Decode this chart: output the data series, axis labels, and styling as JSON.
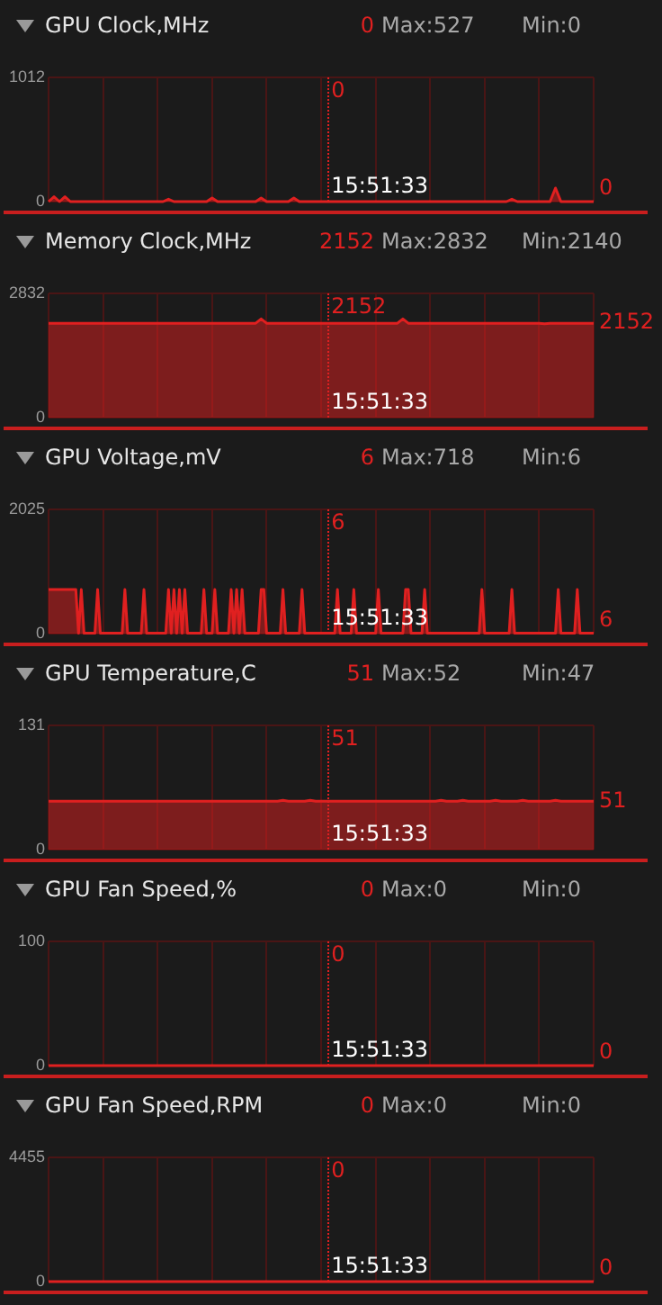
{
  "chart_data": [
    {
      "type": "area",
      "title": "GPU Clock,MHz",
      "color": "#e02020",
      "grid": true,
      "tick_labels": "y",
      "ylim": [
        0,
        1012
      ],
      "yticks": [
        0,
        1012
      ],
      "categories": [
        null,
        null,
        null,
        null,
        null,
        null,
        null,
        null,
        null,
        null,
        null,
        null,
        null,
        null,
        null,
        null,
        null,
        null,
        null,
        null,
        null,
        null,
        null,
        null,
        null,
        null,
        null,
        null,
        null,
        null,
        null,
        null,
        null,
        null,
        null,
        null,
        null,
        null,
        null,
        null,
        null,
        null,
        null,
        null,
        null,
        null,
        null,
        null,
        null,
        null,
        null,
        null,
        null,
        null,
        null,
        null,
        null,
        null,
        null,
        null,
        null,
        null,
        null,
        null,
        null,
        null,
        null,
        null,
        null,
        null,
        null,
        null,
        null,
        null,
        null,
        null,
        null,
        null,
        null,
        null,
        null,
        null,
        null,
        null,
        null,
        null,
        null,
        null,
        null,
        null,
        null,
        null,
        null,
        null,
        null,
        null,
        null,
        null,
        null,
        null,
        null
      ],
      "values": [
        0,
        40,
        0,
        40,
        0,
        0,
        0,
        0,
        0,
        0,
        0,
        0,
        0,
        0,
        0,
        0,
        0,
        0,
        0,
        0,
        0,
        0,
        20,
        0,
        0,
        0,
        0,
        0,
        0,
        0,
        30,
        0,
        0,
        0,
        0,
        0,
        0,
        0,
        0,
        30,
        0,
        0,
        0,
        0,
        0,
        30,
        0,
        0,
        0,
        0,
        0,
        0,
        0,
        0,
        0,
        0,
        0,
        0,
        0,
        0,
        0,
        0,
        0,
        0,
        0,
        0,
        0,
        0,
        0,
        0,
        0,
        0,
        0,
        0,
        0,
        0,
        0,
        0,
        0,
        0,
        0,
        0,
        0,
        0,
        0,
        20,
        0,
        0,
        0,
        0,
        0,
        0,
        0,
        110,
        0,
        0,
        0,
        0,
        0,
        0,
        0
      ],
      "annotations": [
        "0",
        "Max:527",
        "Min:0",
        "0",
        "15:51:33",
        "0"
      ]
    },
    {
      "type": "area",
      "title": "Memory Clock,MHz",
      "color": "#e02020",
      "grid": true,
      "tick_labels": "y",
      "ylim": [
        0,
        2832
      ],
      "yticks": [
        0,
        2832
      ],
      "categories": [
        null,
        null,
        null,
        null,
        null,
        null,
        null,
        null,
        null,
        null,
        null,
        null,
        null,
        null,
        null,
        null,
        null,
        null,
        null,
        null,
        null,
        null,
        null,
        null,
        null,
        null,
        null,
        null,
        null,
        null,
        null,
        null,
        null,
        null,
        null,
        null,
        null,
        null,
        null,
        null,
        null,
        null,
        null,
        null,
        null,
        null,
        null,
        null,
        null,
        null,
        null,
        null,
        null,
        null,
        null,
        null,
        null,
        null,
        null,
        null,
        null,
        null,
        null,
        null,
        null,
        null,
        null,
        null,
        null,
        null,
        null,
        null,
        null,
        null,
        null,
        null,
        null,
        null,
        null,
        null,
        null,
        null,
        null,
        null,
        null,
        null,
        null,
        null,
        null,
        null,
        null,
        null,
        null,
        null,
        null,
        null,
        null,
        null,
        null,
        null,
        null
      ],
      "values": [
        2152,
        2152,
        2152,
        2152,
        2152,
        2152,
        2152,
        2152,
        2152,
        2152,
        2152,
        2152,
        2152,
        2152,
        2152,
        2152,
        2152,
        2152,
        2152,
        2152,
        2152,
        2152,
        2152,
        2152,
        2152,
        2152,
        2152,
        2152,
        2152,
        2152,
        2152,
        2152,
        2152,
        2152,
        2152,
        2152,
        2152,
        2152,
        2152,
        2250,
        2152,
        2152,
        2152,
        2152,
        2152,
        2152,
        2152,
        2152,
        2152,
        2152,
        2152,
        2152,
        2152,
        2152,
        2152,
        2152,
        2152,
        2152,
        2152,
        2152,
        2152,
        2152,
        2152,
        2152,
        2152,
        2250,
        2152,
        2152,
        2152,
        2152,
        2152,
        2152,
        2152,
        2152,
        2152,
        2152,
        2152,
        2152,
        2152,
        2152,
        2152,
        2152,
        2152,
        2152,
        2152,
        2152,
        2152,
        2152,
        2152,
        2152,
        2152,
        2140,
        2152,
        2152,
        2152,
        2152,
        2152,
        2152,
        2152,
        2152,
        2152
      ],
      "annotations": [
        "2152",
        "Max:2832",
        "Min:2140",
        "2152",
        "15:51:33",
        "2152"
      ]
    },
    {
      "type": "area",
      "title": "GPU Voltage,mV",
      "color": "#e02020",
      "grid": true,
      "tick_labels": "y",
      "ylim": [
        0,
        2025
      ],
      "yticks": [
        0,
        2025
      ],
      "categories": [
        null,
        null,
        null,
        null,
        null,
        null,
        null,
        null,
        null,
        null,
        null,
        null,
        null,
        null,
        null,
        null,
        null,
        null,
        null,
        null,
        null,
        null,
        null,
        null,
        null,
        null,
        null,
        null,
        null,
        null,
        null,
        null,
        null,
        null,
        null,
        null,
        null,
        null,
        null,
        null,
        null,
        null,
        null,
        null,
        null,
        null,
        null,
        null,
        null,
        null,
        null,
        null,
        null,
        null,
        null,
        null,
        null,
        null,
        null,
        null,
        null,
        null,
        null,
        null,
        null,
        null,
        null,
        null,
        null,
        null,
        null,
        null,
        null,
        null,
        null,
        null,
        null,
        null,
        null,
        null,
        null,
        null,
        null,
        null,
        null,
        null,
        null,
        null,
        null,
        null,
        null,
        null,
        null,
        null,
        null,
        null,
        null,
        null,
        null,
        null,
        null,
        null,
        null,
        null,
        null,
        null,
        null,
        null,
        null,
        null,
        null,
        null,
        null,
        null,
        null,
        null,
        null,
        null,
        null,
        null,
        null,
        null,
        null,
        null,
        null,
        null,
        null,
        null,
        null,
        null,
        null,
        null,
        null,
        null,
        null,
        null,
        null,
        null,
        null,
        null,
        null,
        null,
        null,
        null,
        null,
        null,
        null,
        null,
        null,
        null,
        null,
        null,
        null,
        null,
        null,
        null,
        null,
        null,
        null,
        null,
        null,
        null,
        null,
        null,
        null,
        null,
        null,
        null,
        null,
        null,
        null,
        null,
        null,
        null,
        null,
        null,
        null,
        null,
        null,
        null,
        null,
        null,
        null,
        null,
        null,
        null,
        null,
        null,
        null,
        null,
        null,
        null,
        null,
        null,
        null,
        null,
        null,
        null,
        null,
        null,
        null
      ],
      "values": [
        718,
        718,
        718,
        718,
        718,
        718,
        718,
        718,
        718,
        718,
        718,
        6,
        718,
        6,
        6,
        6,
        6,
        6,
        718,
        6,
        6,
        6,
        6,
        6,
        6,
        6,
        6,
        6,
        718,
        6,
        6,
        6,
        6,
        6,
        6,
        718,
        6,
        6,
        6,
        6,
        6,
        6,
        6,
        6,
        718,
        6,
        718,
        6,
        718,
        6,
        718,
        6,
        6,
        6,
        6,
        6,
        6,
        718,
        6,
        6,
        6,
        718,
        6,
        6,
        6,
        6,
        6,
        718,
        6,
        718,
        6,
        718,
        6,
        6,
        6,
        6,
        6,
        6,
        718,
        718,
        6,
        6,
        6,
        6,
        6,
        6,
        718,
        6,
        6,
        6,
        6,
        6,
        6,
        718,
        6,
        6,
        6,
        6,
        6,
        6,
        6,
        6,
        6,
        6,
        6,
        6,
        718,
        6,
        6,
        6,
        6,
        6,
        718,
        6,
        6,
        6,
        6,
        6,
        6,
        6,
        6,
        718,
        6,
        6,
        6,
        6,
        6,
        6,
        6,
        6,
        6,
        718,
        718,
        6,
        6,
        6,
        6,
        6,
        718,
        6,
        6,
        6,
        6,
        6,
        6,
        6,
        6,
        6,
        6,
        6,
        6,
        6,
        6,
        6,
        6,
        6,
        6,
        6,
        6,
        718,
        6,
        6,
        6,
        6,
        6,
        6,
        6,
        6,
        6,
        6,
        718,
        6,
        6,
        6,
        6,
        6,
        6,
        6,
        6,
        6,
        6,
        6,
        6,
        6,
        6,
        6,
        6,
        718,
        6,
        6,
        6,
        6,
        6,
        6,
        718,
        6,
        6,
        6,
        6,
        6,
        6
      ],
      "annotations": [
        "6",
        "Max:718",
        "Min:6",
        "6",
        "15:51:33",
        "6"
      ]
    },
    {
      "type": "area",
      "title": "GPU Temperature,C",
      "color": "#e02020",
      "grid": true,
      "tick_labels": "y",
      "ylim": [
        0,
        131
      ],
      "yticks": [
        0,
        131
      ],
      "categories": [
        null,
        null,
        null,
        null,
        null,
        null,
        null,
        null,
        null,
        null,
        null,
        null,
        null,
        null,
        null,
        null,
        null,
        null,
        null,
        null,
        null,
        null,
        null,
        null,
        null,
        null,
        null,
        null,
        null,
        null,
        null,
        null,
        null,
        null,
        null,
        null,
        null,
        null,
        null,
        null,
        null,
        null,
        null,
        null,
        null,
        null,
        null,
        null,
        null,
        null,
        null,
        null,
        null,
        null,
        null,
        null,
        null,
        null,
        null,
        null,
        null,
        null,
        null,
        null,
        null,
        null,
        null,
        null,
        null,
        null,
        null,
        null,
        null,
        null,
        null,
        null,
        null,
        null,
        null,
        null,
        null,
        null,
        null,
        null,
        null,
        null,
        null,
        null,
        null,
        null,
        null,
        null,
        null,
        null,
        null,
        null,
        null,
        null,
        null,
        null,
        null
      ],
      "values": [
        51,
        51,
        51,
        51,
        51,
        51,
        51,
        51,
        51,
        51,
        51,
        51,
        51,
        51,
        51,
        51,
        51,
        51,
        51,
        51,
        51,
        51,
        51,
        51,
        51,
        51,
        51,
        51,
        51,
        51,
        51,
        51,
        51,
        51,
        51,
        51,
        51,
        51,
        51,
        51,
        51,
        51,
        51,
        52,
        51,
        51,
        51,
        51,
        52,
        51,
        51,
        51,
        51,
        51,
        51,
        51,
        51,
        51,
        51,
        51,
        51,
        51,
        51,
        51,
        51,
        51,
        51,
        51,
        51,
        51,
        51,
        51,
        52,
        51,
        51,
        51,
        52,
        51,
        51,
        51,
        51,
        51,
        52,
        51,
        51,
        51,
        51,
        52,
        51,
        51,
        51,
        51,
        51,
        52,
        51,
        51,
        51,
        51,
        51,
        51,
        51
      ],
      "annotations": [
        "51",
        "Max:52",
        "Min:47",
        "51",
        "15:51:33",
        "51"
      ]
    },
    {
      "type": "line",
      "title": "GPU Fan Speed,%",
      "color": "#e02020",
      "grid": true,
      "tick_labels": "y",
      "ylim": [
        0,
        100
      ],
      "yticks": [
        0,
        100
      ],
      "categories": [
        null,
        null,
        null,
        null,
        null,
        null,
        null,
        null,
        null,
        null,
        null
      ],
      "values": [
        0,
        0,
        0,
        0,
        0,
        0,
        0,
        0,
        0,
        0,
        0
      ],
      "annotations": [
        "0",
        "Max:0",
        "Min:0",
        "0",
        "15:51:33",
        "0"
      ]
    },
    {
      "type": "line",
      "title": "GPU Fan Speed,RPM",
      "color": "#e02020",
      "grid": true,
      "tick_labels": "y",
      "ylim": [
        0,
        4455
      ],
      "yticks": [
        0,
        4455
      ],
      "categories": [
        null,
        null,
        null,
        null,
        null,
        null,
        null,
        null,
        null,
        null,
        null
      ],
      "values": [
        0,
        0,
        0,
        0,
        0,
        0,
        0,
        0,
        0,
        0,
        0
      ],
      "annotations": [
        "0",
        "Max:0",
        "Min:0",
        "0",
        "15:51:33",
        "0"
      ]
    }
  ]
}
